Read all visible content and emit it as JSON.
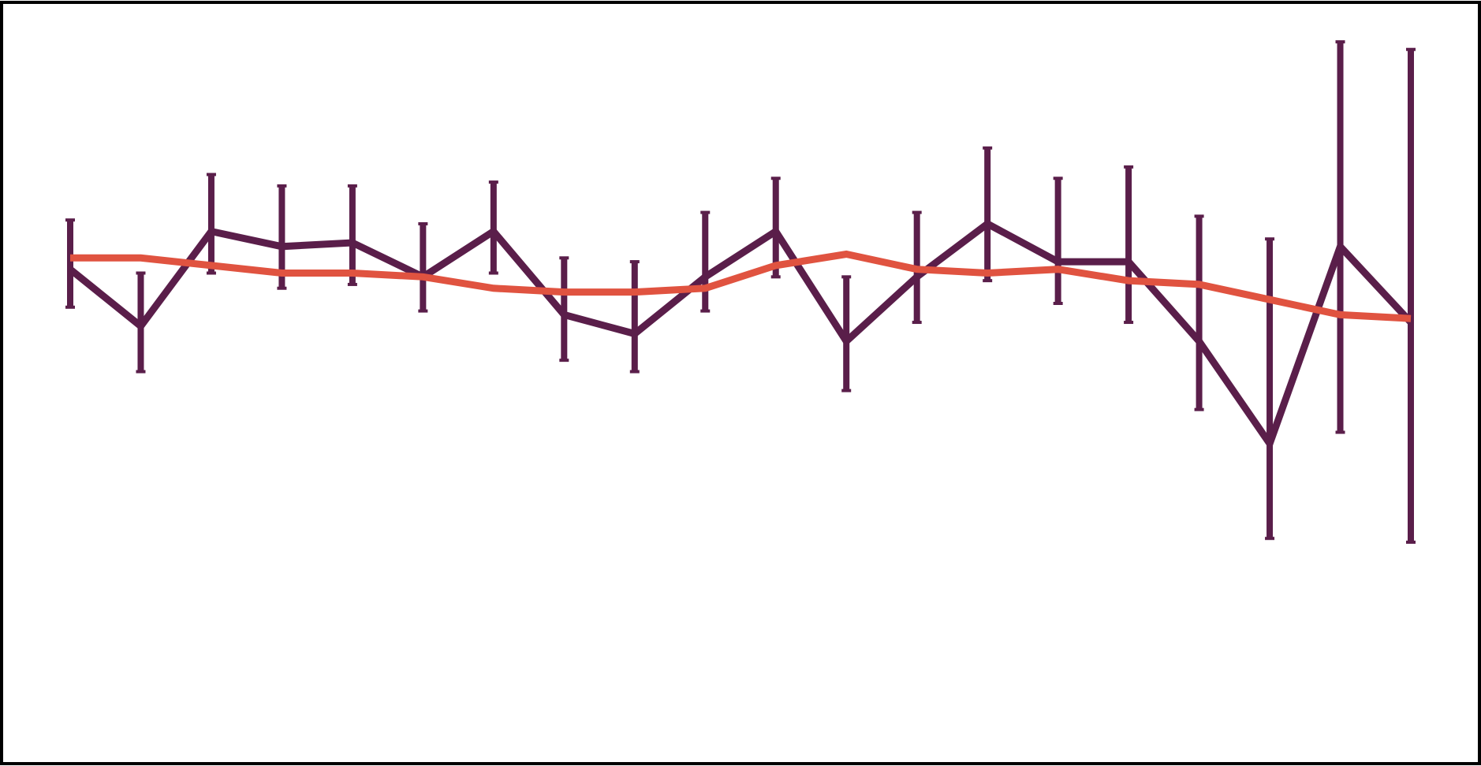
{
  "chart_data": {
    "type": "line",
    "title": "",
    "xlabel": "",
    "ylabel": "",
    "x": [
      1,
      2,
      3,
      4,
      5,
      6,
      7,
      8,
      9,
      10,
      11,
      12,
      13,
      14,
      15,
      16,
      17,
      18,
      19,
      20
    ],
    "xlim": [
      0.05,
      20.95
    ],
    "ylim": [
      -1.0,
      1.0
    ],
    "grid": false,
    "legend": "none",
    "series": [
      {
        "role": "observed",
        "color": "#5a1e4a",
        "values": [
          0.3,
          0.15,
          0.4,
          0.36,
          0.37,
          0.28,
          0.4,
          0.18,
          0.13,
          0.28,
          0.4,
          0.11,
          0.28,
          0.42,
          0.32,
          0.32,
          0.11,
          -0.16,
          0.36,
          0.16
        ],
        "error_low": [
          0.2,
          0.03,
          0.29,
          0.25,
          0.26,
          0.19,
          0.29,
          0.06,
          0.03,
          0.19,
          0.28,
          -0.02,
          0.16,
          0.27,
          0.21,
          0.16,
          -0.07,
          -0.41,
          -0.13,
          -0.42
        ],
        "error_high": [
          0.43,
          0.29,
          0.55,
          0.52,
          0.52,
          0.42,
          0.53,
          0.33,
          0.32,
          0.45,
          0.54,
          0.28,
          0.45,
          0.62,
          0.54,
          0.57,
          0.44,
          0.38,
          0.9,
          0.88
        ]
      },
      {
        "role": "trend",
        "color": "#e05340",
        "values": [
          0.33,
          0.33,
          0.31,
          0.29,
          0.29,
          0.28,
          0.25,
          0.24,
          0.24,
          0.25,
          0.31,
          0.34,
          0.3,
          0.29,
          0.3,
          0.27,
          0.26,
          0.22,
          0.18,
          0.17
        ]
      }
    ]
  }
}
